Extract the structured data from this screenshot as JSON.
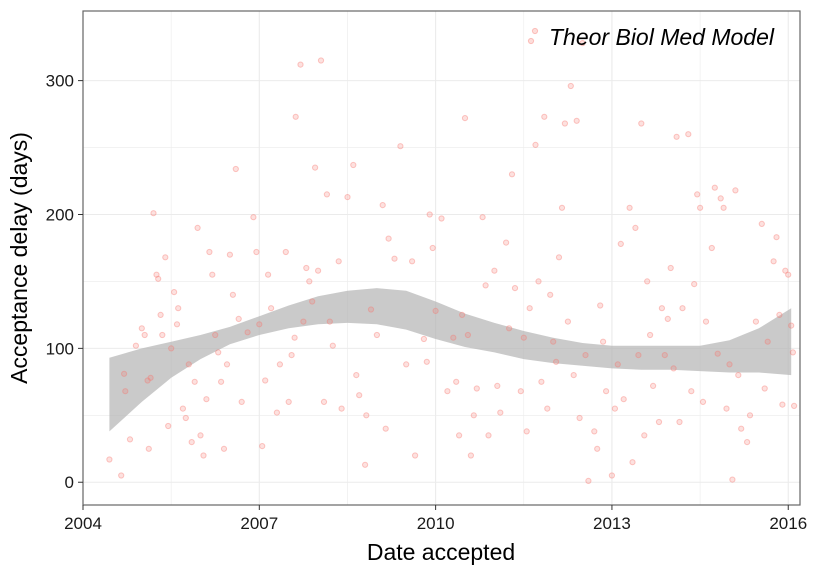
{
  "chart_data": {
    "type": "scatter",
    "title": "",
    "xlabel": "Date accepted",
    "ylabel": "Acceptance delay (days)",
    "xlim": [
      2004.0,
      2016.2
    ],
    "ylim": [
      -17,
      352
    ],
    "x_ticks": [
      2004,
      2007,
      2010,
      2013,
      2016
    ],
    "x_tick_labels": [
      "2004",
      "2007",
      "2010",
      "2013",
      "2016"
    ],
    "y_ticks": [
      0,
      100,
      200,
      300
    ],
    "y_tick_labels": [
      "0",
      "100",
      "200",
      "300"
    ],
    "grid": true,
    "legend_position": "top-right",
    "colors": {
      "points": "#f8766d",
      "ribbon": "#b3b3b3",
      "panel_border": "#666666",
      "grid": "#ebebeb"
    },
    "series": [
      {
        "name": "Theor Biol Med Model",
        "type": "scatter",
        "points": [
          [
            2004.45,
            17
          ],
          [
            2004.65,
            5
          ],
          [
            2004.7,
            81
          ],
          [
            2004.72,
            68
          ],
          [
            2004.8,
            32
          ],
          [
            2004.9,
            102
          ],
          [
            2005.0,
            115
          ],
          [
            2005.05,
            110
          ],
          [
            2005.1,
            76
          ],
          [
            2005.12,
            25
          ],
          [
            2005.15,
            78
          ],
          [
            2005.2,
            201
          ],
          [
            2005.25,
            155
          ],
          [
            2005.28,
            152
          ],
          [
            2005.32,
            125
          ],
          [
            2005.35,
            110
          ],
          [
            2005.4,
            168
          ],
          [
            2005.45,
            42
          ],
          [
            2005.5,
            100
          ],
          [
            2005.55,
            142
          ],
          [
            2005.6,
            118
          ],
          [
            2005.62,
            130
          ],
          [
            2005.7,
            55
          ],
          [
            2005.75,
            48
          ],
          [
            2005.8,
            88
          ],
          [
            2005.85,
            30
          ],
          [
            2005.9,
            75
          ],
          [
            2005.95,
            190
          ],
          [
            2006.0,
            35
          ],
          [
            2006.05,
            20
          ],
          [
            2006.1,
            62
          ],
          [
            2006.15,
            172
          ],
          [
            2006.2,
            155
          ],
          [
            2006.25,
            110
          ],
          [
            2006.3,
            97
          ],
          [
            2006.35,
            75
          ],
          [
            2006.4,
            25
          ],
          [
            2006.45,
            88
          ],
          [
            2006.5,
            170
          ],
          [
            2006.55,
            140
          ],
          [
            2006.6,
            234
          ],
          [
            2006.65,
            122
          ],
          [
            2006.7,
            60
          ],
          [
            2006.8,
            112
          ],
          [
            2006.9,
            198
          ],
          [
            2006.95,
            172
          ],
          [
            2007.0,
            118
          ],
          [
            2007.05,
            27
          ],
          [
            2007.1,
            76
          ],
          [
            2007.15,
            155
          ],
          [
            2007.2,
            130
          ],
          [
            2007.3,
            52
          ],
          [
            2007.35,
            88
          ],
          [
            2007.45,
            172
          ],
          [
            2007.5,
            60
          ],
          [
            2007.55,
            95
          ],
          [
            2007.6,
            108
          ],
          [
            2007.62,
            273
          ],
          [
            2007.7,
            312
          ],
          [
            2007.75,
            120
          ],
          [
            2007.8,
            160
          ],
          [
            2007.85,
            150
          ],
          [
            2007.9,
            135
          ],
          [
            2007.95,
            235
          ],
          [
            2008.0,
            158
          ],
          [
            2008.05,
            315
          ],
          [
            2008.1,
            60
          ],
          [
            2008.15,
            215
          ],
          [
            2008.2,
            120
          ],
          [
            2008.25,
            102
          ],
          [
            2008.35,
            165
          ],
          [
            2008.4,
            55
          ],
          [
            2008.5,
            213
          ],
          [
            2008.6,
            237
          ],
          [
            2008.65,
            80
          ],
          [
            2008.7,
            65
          ],
          [
            2008.8,
            13
          ],
          [
            2008.82,
            50
          ],
          [
            2008.9,
            129
          ],
          [
            2009.0,
            110
          ],
          [
            2009.1,
            207
          ],
          [
            2009.15,
            40
          ],
          [
            2009.2,
            182
          ],
          [
            2009.3,
            167
          ],
          [
            2009.4,
            251
          ],
          [
            2009.5,
            88
          ],
          [
            2009.6,
            165
          ],
          [
            2009.65,
            20
          ],
          [
            2009.8,
            107
          ],
          [
            2009.85,
            90
          ],
          [
            2009.9,
            200
          ],
          [
            2009.95,
            175
          ],
          [
            2010.0,
            128
          ],
          [
            2010.1,
            197
          ],
          [
            2010.2,
            68
          ],
          [
            2010.3,
            108
          ],
          [
            2010.35,
            75
          ],
          [
            2010.4,
            35
          ],
          [
            2010.45,
            125
          ],
          [
            2010.5,
            272
          ],
          [
            2010.55,
            110
          ],
          [
            2010.6,
            20
          ],
          [
            2010.65,
            50
          ],
          [
            2010.7,
            70
          ],
          [
            2010.8,
            198
          ],
          [
            2010.85,
            147
          ],
          [
            2010.9,
            35
          ],
          [
            2011.0,
            158
          ],
          [
            2011.05,
            72
          ],
          [
            2011.1,
            52
          ],
          [
            2011.2,
            179
          ],
          [
            2011.25,
            115
          ],
          [
            2011.3,
            230
          ],
          [
            2011.35,
            145
          ],
          [
            2011.45,
            68
          ],
          [
            2011.5,
            108
          ],
          [
            2011.55,
            38
          ],
          [
            2011.6,
            130
          ],
          [
            2011.7,
            252
          ],
          [
            2011.75,
            150
          ],
          [
            2011.8,
            75
          ],
          [
            2011.85,
            273
          ],
          [
            2011.9,
            55
          ],
          [
            2011.95,
            140
          ],
          [
            2012.0,
            105
          ],
          [
            2012.05,
            90
          ],
          [
            2012.1,
            168
          ],
          [
            2012.15,
            205
          ],
          [
            2012.2,
            268
          ],
          [
            2012.25,
            120
          ],
          [
            2012.3,
            296
          ],
          [
            2012.35,
            80
          ],
          [
            2012.4,
            270
          ],
          [
            2012.45,
            48
          ],
          [
            2012.5,
            328
          ],
          [
            2012.55,
            95
          ],
          [
            2012.6,
            1
          ],
          [
            2012.7,
            38
          ],
          [
            2012.75,
            25
          ],
          [
            2012.8,
            132
          ],
          [
            2012.85,
            105
          ],
          [
            2012.9,
            68
          ],
          [
            2013.0,
            5
          ],
          [
            2013.05,
            55
          ],
          [
            2013.1,
            88
          ],
          [
            2013.15,
            178
          ],
          [
            2013.2,
            62
          ],
          [
            2013.3,
            205
          ],
          [
            2013.35,
            15
          ],
          [
            2013.4,
            190
          ],
          [
            2013.45,
            95
          ],
          [
            2013.5,
            268
          ],
          [
            2013.55,
            35
          ],
          [
            2013.6,
            150
          ],
          [
            2013.65,
            110
          ],
          [
            2013.7,
            72
          ],
          [
            2013.8,
            45
          ],
          [
            2013.85,
            130
          ],
          [
            2013.9,
            95
          ],
          [
            2013.95,
            122
          ],
          [
            2014.0,
            160
          ],
          [
            2014.05,
            85
          ],
          [
            2014.1,
            258
          ],
          [
            2014.15,
            45
          ],
          [
            2014.2,
            130
          ],
          [
            2014.3,
            260
          ],
          [
            2014.35,
            68
          ],
          [
            2014.4,
            148
          ],
          [
            2014.45,
            215
          ],
          [
            2014.5,
            205
          ],
          [
            2014.55,
            60
          ],
          [
            2014.6,
            120
          ],
          [
            2014.7,
            175
          ],
          [
            2014.75,
            220
          ],
          [
            2014.8,
            96
          ],
          [
            2014.85,
            212
          ],
          [
            2014.9,
            205
          ],
          [
            2014.95,
            55
          ],
          [
            2015.0,
            88
          ],
          [
            2015.05,
            2
          ],
          [
            2015.1,
            218
          ],
          [
            2015.15,
            80
          ],
          [
            2015.2,
            40
          ],
          [
            2015.3,
            30
          ],
          [
            2015.35,
            50
          ],
          [
            2015.45,
            120
          ],
          [
            2015.55,
            193
          ],
          [
            2015.6,
            70
          ],
          [
            2015.65,
            105
          ],
          [
            2015.75,
            165
          ],
          [
            2015.8,
            183
          ],
          [
            2015.85,
            125
          ],
          [
            2015.9,
            58
          ],
          [
            2015.95,
            158
          ],
          [
            2016.0,
            155
          ],
          [
            2016.05,
            117
          ],
          [
            2016.08,
            97
          ],
          [
            2016.1,
            57
          ]
        ]
      },
      {
        "type": "smooth_ribbon",
        "x": [
          2004.45,
          2005.0,
          2005.5,
          2006.0,
          2006.5,
          2007.0,
          2007.5,
          2008.0,
          2008.5,
          2009.0,
          2009.5,
          2010.0,
          2010.5,
          2011.0,
          2011.5,
          2012.0,
          2012.5,
          2013.0,
          2013.5,
          2014.0,
          2014.5,
          2015.0,
          2015.5,
          2016.05
        ],
        "upper": [
          93,
          100,
          105,
          110,
          116,
          124,
          132,
          139,
          143,
          145,
          143,
          135,
          126,
          119,
          113,
          108,
          104,
          102,
          102,
          102,
          102,
          106,
          115,
          130
        ],
        "lower": [
          38,
          60,
          78,
          92,
          103,
          110,
          115,
          118,
          119,
          118,
          114,
          107,
          101,
          97,
          92,
          89,
          87,
          85,
          84,
          84,
          83,
          82,
          82,
          80
        ]
      }
    ]
  }
}
